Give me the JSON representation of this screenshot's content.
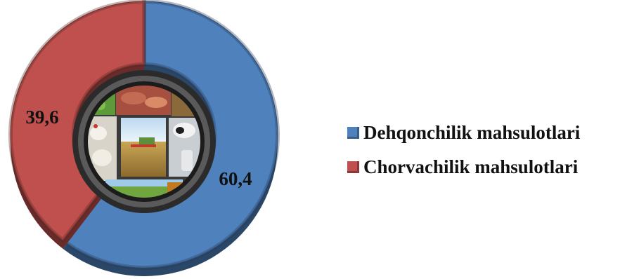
{
  "chart_data": {
    "type": "pie",
    "title": "",
    "series": [
      {
        "name": "Dehqonchilik mahsulotlari",
        "value": 60.4,
        "label": "60,4",
        "color": "#4f81bd"
      },
      {
        "name": "Chorvachilik mahsulotlari",
        "value": 39.6,
        "label": "39,6",
        "color": "#c0504d"
      }
    ],
    "legend_position": "right",
    "style": "3D doughnut with photo collage in the centre"
  }
}
